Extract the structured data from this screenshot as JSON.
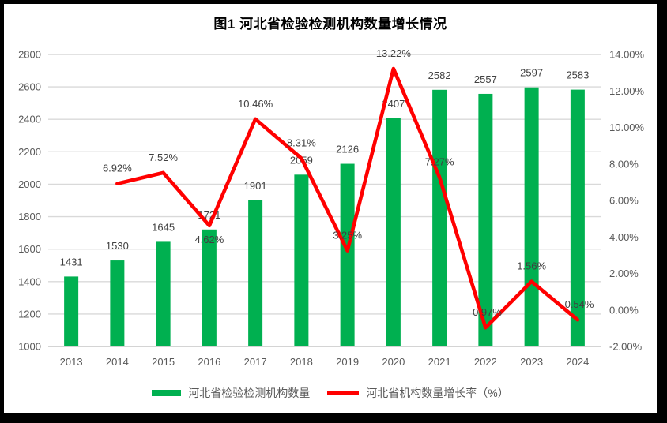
{
  "chart_data": {
    "type": "bar",
    "subtype": "combo-bar-line",
    "title": "图1 河北省检验检测机构数量增长情况",
    "categories": [
      "2013",
      "2014",
      "2015",
      "2016",
      "2017",
      "2018",
      "2019",
      "2020",
      "2021",
      "2022",
      "2023",
      "2024"
    ],
    "series": [
      {
        "name": "河北省检验检测机构数量",
        "type": "bar",
        "axis": "left",
        "color": "#00B050",
        "values": [
          1431,
          1530,
          1645,
          1721,
          1901,
          2059,
          2126,
          2407,
          2582,
          2557,
          2597,
          2583
        ],
        "labels": [
          "1431",
          "1530",
          "1645",
          "1721",
          "1901",
          "2059",
          "2126",
          "2407",
          "2582",
          "2557",
          "2597",
          "2583"
        ]
      },
      {
        "name": "河北省机构数量增长率（%）",
        "type": "line",
        "axis": "right",
        "color": "#FF0000",
        "values": [
          null,
          6.92,
          7.52,
          4.62,
          10.46,
          8.31,
          3.25,
          13.22,
          7.27,
          -0.97,
          1.56,
          -0.54
        ],
        "labels": [
          "",
          "6.92%",
          "7.52%",
          "4.62%",
          "10.46%",
          "8.31%",
          "3.25%",
          "13.22%",
          "7.27%",
          "-0.97%",
          "1.56%",
          "-0.54%"
        ],
        "label_side": [
          "",
          "above",
          "above",
          "below",
          "above",
          "above",
          "above",
          "above",
          "above",
          "above",
          "above",
          "above"
        ]
      }
    ],
    "left_axis": {
      "min": 1000,
      "max": 2800,
      "step": 200,
      "ticks": [
        "1000",
        "1200",
        "1400",
        "1600",
        "1800",
        "2000",
        "2200",
        "2400",
        "2600",
        "2800"
      ]
    },
    "right_axis": {
      "min": -2,
      "max": 14,
      "step": 2,
      "ticks": [
        "-2.00%",
        "0.00%",
        "2.00%",
        "4.00%",
        "6.00%",
        "8.00%",
        "10.00%",
        "12.00%",
        "14.00%"
      ]
    },
    "legend_position": "bottom",
    "grid": true,
    "colors": {
      "gridline": "#D9D9D9",
      "baseline": "#C6C6C6",
      "tick_text": "#595959",
      "data_label_text": "#404040",
      "title_text": "#000000"
    }
  }
}
